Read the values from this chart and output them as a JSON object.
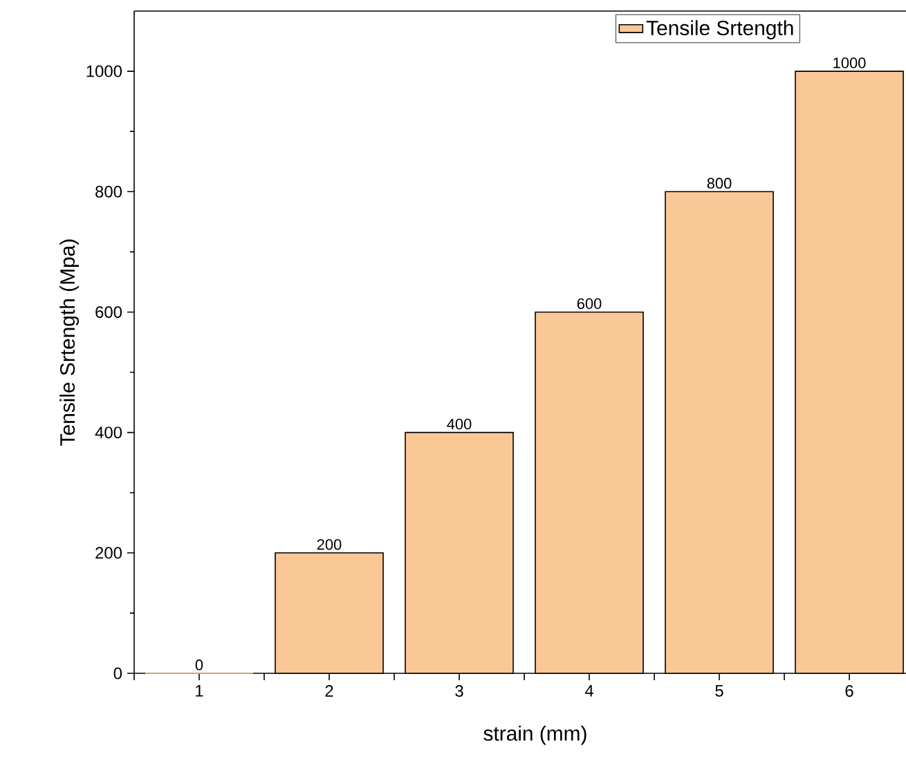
{
  "chart_data": {
    "type": "bar",
    "xlabel": "strain (mm)",
    "ylabel": "Tensile Srtength (Mpa)",
    "categories": [
      "1",
      "2",
      "3",
      "4",
      "5",
      "6"
    ],
    "series": [
      {
        "name": "Tensile Srtength",
        "color": "#fac896",
        "values": [
          0,
          200,
          400,
          600,
          800,
          1000
        ]
      }
    ],
    "ylim": [
      0,
      1100
    ],
    "yticks": [
      0,
      200,
      400,
      600,
      800,
      1000
    ],
    "data_labels": true,
    "legend": "top right",
    "grid": false
  }
}
